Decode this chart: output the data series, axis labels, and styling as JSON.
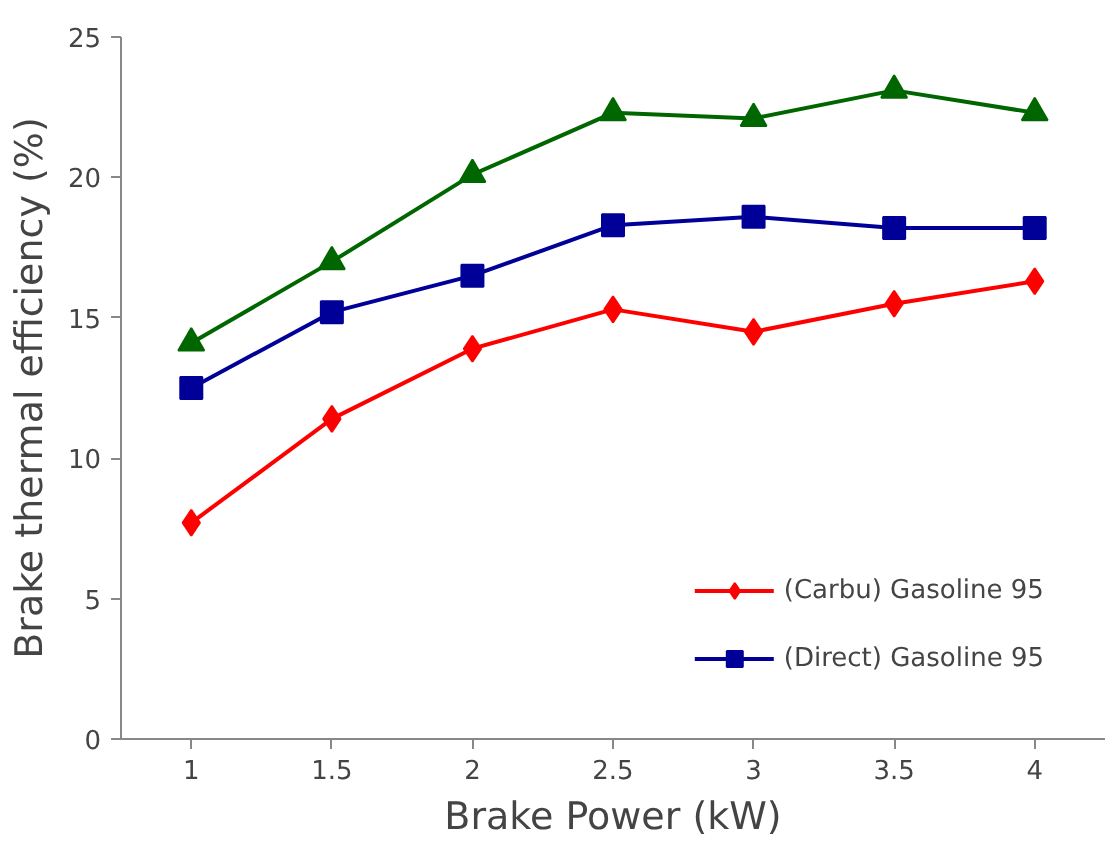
{
  "chart_data": {
    "type": "line",
    "xlabel": "Brake Power (kW)",
    "ylabel": "Brake thermal efficiency (%)",
    "categories": [
      "1",
      "1.5",
      "2",
      "2.5",
      "3",
      "3.5",
      "4"
    ],
    "series": [
      {
        "name": "(Carbu) Gasoline 95",
        "color": "#ff0000",
        "marker": "diamond",
        "values": [
          7.7,
          11.4,
          13.9,
          15.3,
          14.5,
          15.5,
          16.3
        ]
      },
      {
        "name": "(Direct) Gasoline 95",
        "color": "#000099",
        "marker": "square",
        "values": [
          12.5,
          15.2,
          16.5,
          18.3,
          18.6,
          18.2,
          18.2
        ]
      },
      {
        "color": "#006600",
        "marker": "triangle",
        "values": [
          14.1,
          17.0,
          20.1,
          22.3,
          22.1,
          23.1,
          22.3
        ]
      }
    ],
    "ylim": [
      0,
      25
    ],
    "yticks": [
      0,
      5,
      10,
      15,
      20,
      25
    ],
    "grid": false,
    "legend": "bottom right",
    "line_style": "solid"
  }
}
